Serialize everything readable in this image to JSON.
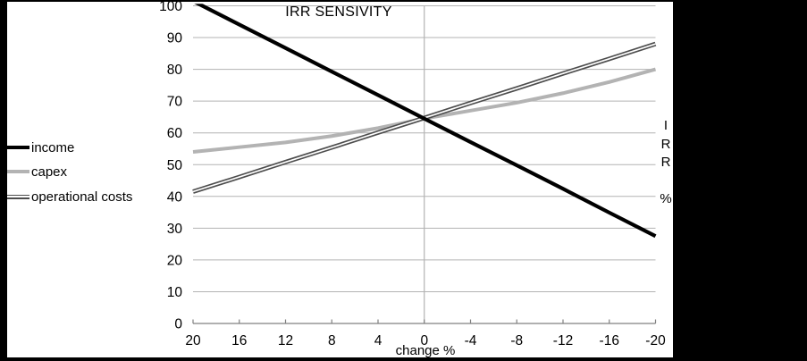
{
  "frame_color": "#000000",
  "chart_data": {
    "type": "line",
    "title": "IRR SENSIVITY",
    "xlabel": "change %",
    "ylabel": "IRR %",
    "x_axis": {
      "ticks": [
        20,
        16,
        12,
        8,
        4,
        0,
        -4,
        -8,
        -12,
        -16,
        -20
      ],
      "reversed": true
    },
    "y_axis": {
      "min": 0,
      "max": 100,
      "tick_step": 10,
      "tick_labels": [
        "0",
        "10",
        "20",
        "30",
        "40",
        "50",
        "60",
        "70",
        "80",
        "90",
        "100"
      ]
    },
    "grid": "horizontal-plus-zero-vertical",
    "legend_position": "left",
    "categories": [
      20,
      16,
      12,
      8,
      4,
      0,
      -4,
      -8,
      -12,
      -16,
      -20
    ],
    "series": [
      {
        "name": "capex",
        "color": "#b3b3b3",
        "style": "solid",
        "stroke_width": 4,
        "values": [
          54,
          55.5,
          57,
          59,
          61.5,
          64.5,
          67,
          69.5,
          72.5,
          76,
          80
        ]
      },
      {
        "name": "operational costs",
        "color": "#4d4d4d",
        "style": "double",
        "stroke_width": 5,
        "values": [
          41.5,
          46.1,
          50.8,
          55.4,
          60.1,
          64.7,
          69.4,
          74,
          78.7,
          83.3,
          88
        ]
      },
      {
        "name": "income",
        "color": "#000000",
        "style": "solid",
        "stroke_width": 4.2,
        "values": [
          101.5,
          94.1,
          86.7,
          79.3,
          71.9,
          64.5,
          57.1,
          49.8,
          42.4,
          34.9,
          27.5
        ]
      }
    ],
    "colors": {
      "gridline": "#b3b3b3",
      "axis": "#808080",
      "background": "#ffffff"
    }
  },
  "legend": {
    "items": [
      {
        "label": "income"
      },
      {
        "label": "capex"
      },
      {
        "label": "operational costs"
      }
    ]
  }
}
